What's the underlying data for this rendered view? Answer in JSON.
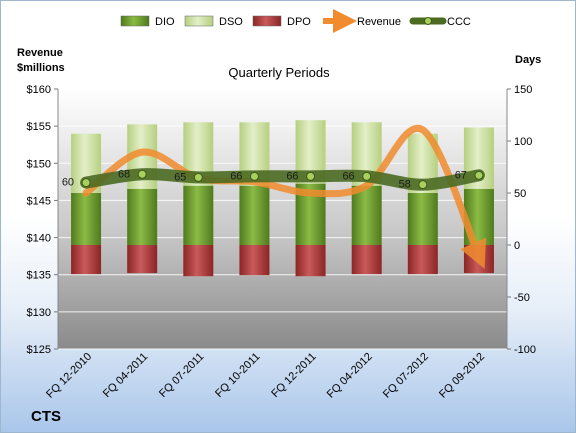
{
  "chart_data": {
    "type": "bar",
    "subtitle": "Quarterly Periods",
    "company": "CTS",
    "left_axis_title": [
      "Revenue",
      "$millions"
    ],
    "right_axis_title": "Days",
    "categories": [
      "FQ 12-2010",
      "FQ 04-2011",
      "FQ 07-2011",
      "FQ 10-2011",
      "FQ 12-2011",
      "FQ 04-2012",
      "FQ 07-2012",
      "FQ 09-2012"
    ],
    "left_axis": {
      "range": [
        125,
        160
      ],
      "ticks": [
        "$125",
        "$130",
        "$135",
        "$140",
        "$145",
        "$150",
        "$155",
        "$160"
      ]
    },
    "right_axis": {
      "range": [
        -100,
        150
      ],
      "ticks": [
        "-100",
        "-50",
        "0",
        "50",
        "100",
        "150"
      ]
    },
    "legend": [
      "DIO",
      "DSO",
      "DPO",
      "Revenue",
      "CCC"
    ],
    "legend_position": "top",
    "series": [
      {
        "name": "DIO",
        "axis": "right",
        "kind": "stacked-bar",
        "color": "#6a9a2a",
        "values": [
          50,
          54,
          57,
          57,
          59,
          57,
          50,
          54
        ]
      },
      {
        "name": "DSO",
        "axis": "right",
        "kind": "stacked-bar",
        "color": "#cfe2a6",
        "values": [
          57,
          62,
          61,
          61,
          61,
          61,
          57,
          59
        ]
      },
      {
        "name": "DPO",
        "axis": "right",
        "kind": "stacked-bar-negative",
        "color": "#b03a3a",
        "values": [
          -28,
          -27,
          -30,
          -29,
          -30,
          -28,
          -28,
          -27
        ]
      },
      {
        "name": "Revenue",
        "axis": "left",
        "kind": "line",
        "color": "#f08c2e",
        "values": [
          146.0,
          151.5,
          148.0,
          147.5,
          146.0,
          147.0,
          154.5,
          137.5
        ]
      },
      {
        "name": "CCC",
        "axis": "right",
        "kind": "line",
        "color": "#5a7a2a",
        "values": [
          60,
          68,
          65,
          66,
          66,
          66,
          58,
          67
        ],
        "labels": [
          "60",
          "68",
          "65",
          "66",
          "66",
          "66",
          "58",
          "67"
        ]
      }
    ],
    "colors": {
      "plot_bg_top": "#ffffff",
      "plot_bg_bottom": "#8f8f8f",
      "gridline": "#ffffff"
    }
  }
}
